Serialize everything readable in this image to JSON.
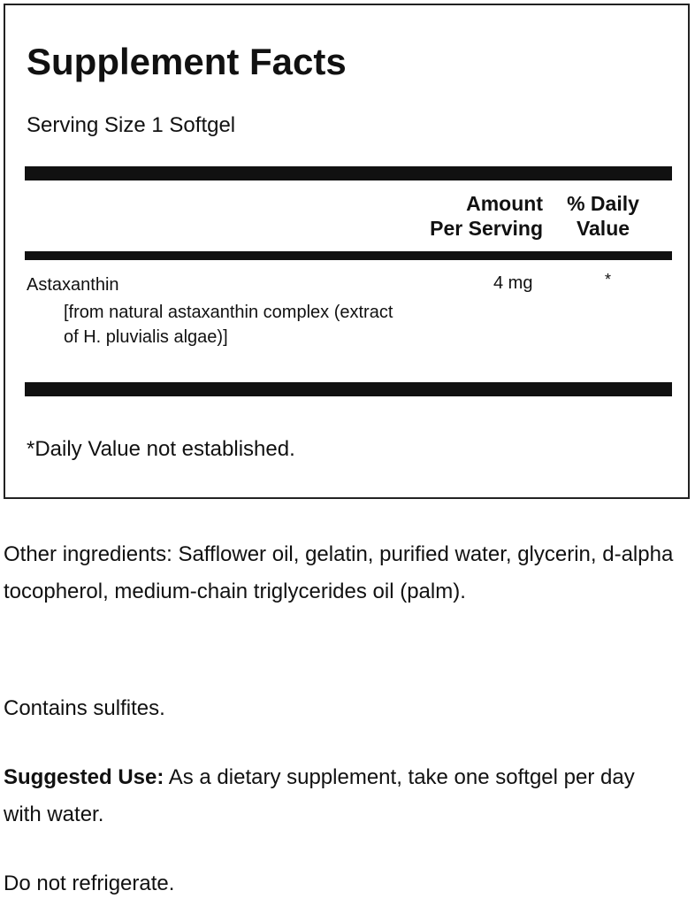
{
  "facts": {
    "title": "Supplement Facts",
    "serving_size": "Serving Size 1 Softgel",
    "header_amount": "Amount\nPer Serving",
    "header_dv": "% Daily\nValue",
    "ingredient": {
      "name": "Astaxanthin",
      "source": "[from natural astaxanthin complex (extract of H. pluvialis algae)]",
      "amount": "4 mg",
      "dv": "*"
    },
    "footnote": "*Daily Value not established."
  },
  "other_ingredients": "Other ingredients: Safflower oil, gelatin, purified water, glycerin, d-alpha tocopherol, medium-chain triglycerides oil (palm).",
  "contains": "Contains sulfites.",
  "suggested_use": {
    "label": "Suggested Use:",
    "text": " As a dietary supplement, take one softgel per day with water."
  },
  "storage": "Do not refrigerate."
}
